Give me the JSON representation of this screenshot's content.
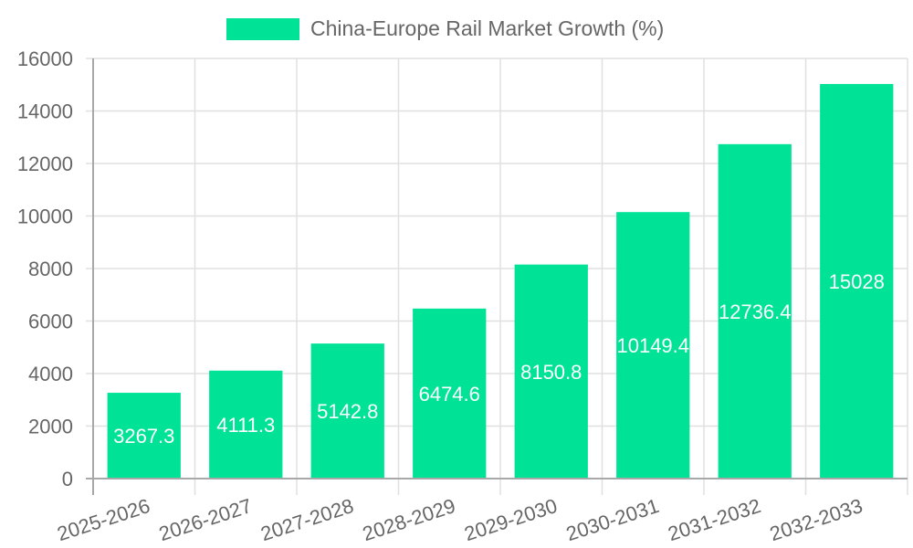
{
  "legend": {
    "label": "China-Europe Rail Market Growth (%)",
    "color": "#00e396"
  },
  "colors": {
    "bar": "#00e396",
    "grid": "#e0e0e0",
    "axis": "#a8a8a8",
    "tick_text": "#666666",
    "value_label": "#ffffff"
  },
  "chart_data": {
    "type": "bar",
    "title": "",
    "categories": [
      "2025-2026",
      "2026-2027",
      "2027-2028",
      "2028-2029",
      "2029-2030",
      "2030-2031",
      "2031-2032",
      "2032-2033"
    ],
    "series": [
      {
        "name": "China-Europe Rail Market Growth (%)",
        "values": [
          3267.3,
          4111.3,
          5142.8,
          6474.6,
          8150.8,
          10149.4,
          12736.4,
          15028
        ]
      }
    ],
    "value_labels": [
      "3267.3",
      "4111.3",
      "5142.8",
      "6474.6",
      "8150.8",
      "10149.4",
      "12736.4",
      "15028"
    ],
    "xlabel": "",
    "ylabel": "",
    "ylim": [
      0,
      16000
    ],
    "yticks": [
      0,
      2000,
      4000,
      6000,
      8000,
      10000,
      12000,
      14000,
      16000
    ],
    "grid": true,
    "legend_position": "top"
  }
}
